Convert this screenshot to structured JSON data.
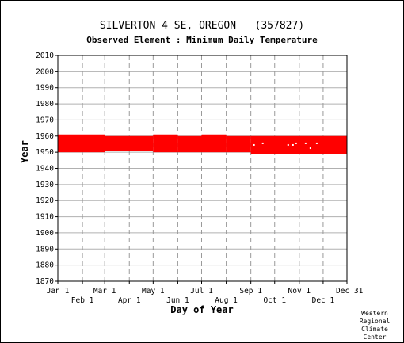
{
  "chart_data": {
    "type": "scatter",
    "title": "SILVERTON 4 SE, OREGON   (357827)",
    "subtitle": "Observed Element : Minimum Daily Temperature",
    "xlabel": "Day of Year",
    "ylabel": "Year",
    "ylim": [
      1870,
      2010
    ],
    "yticks": [
      1870,
      1880,
      1890,
      1900,
      1910,
      1920,
      1930,
      1940,
      1950,
      1960,
      1970,
      1980,
      1990,
      2000,
      2010
    ],
    "xlim": [
      1,
      365
    ],
    "x_ticks_top": [
      {
        "day": 1,
        "label": "Jan 1"
      },
      {
        "day": 60,
        "label": "Mar 1"
      },
      {
        "day": 121,
        "label": "May 1"
      },
      {
        "day": 182,
        "label": "Jul 1"
      },
      {
        "day": 244,
        "label": "Sep 1"
      },
      {
        "day": 305,
        "label": "Nov 1"
      },
      {
        "day": 365,
        "label": "Dec 31"
      }
    ],
    "x_ticks_bottom": [
      {
        "day": 32,
        "label": "Feb 1"
      },
      {
        "day": 91,
        "label": "Apr 1"
      },
      {
        "day": 152,
        "label": "Jun 1"
      },
      {
        "day": 213,
        "label": "Aug 1"
      },
      {
        "day": 274,
        "label": "Oct 1"
      },
      {
        "day": 335,
        "label": "Dec 1"
      }
    ],
    "grid": true,
    "series_color": "#ff0000",
    "data_segments": [
      {
        "day_start": 1,
        "day_end": 60,
        "year_start": 1950,
        "year_end": 1961
      },
      {
        "day_start": 60,
        "day_end": 121,
        "year_start": 1951,
        "year_end": 1960
      },
      {
        "day_start": 121,
        "day_end": 152,
        "year_start": 1950,
        "year_end": 1961
      },
      {
        "day_start": 152,
        "day_end": 182,
        "year_start": 1950,
        "year_end": 1960
      },
      {
        "day_start": 182,
        "day_end": 213,
        "year_start": 1950,
        "year_end": 1961
      },
      {
        "day_start": 213,
        "day_end": 244,
        "year_start": 1950,
        "year_end": 1960
      },
      {
        "day_start": 244,
        "day_end": 365,
        "year_start": 1949,
        "year_end": 1960
      }
    ]
  },
  "credit": [
    "Western",
    "Regional",
    "Climate",
    "Center"
  ]
}
